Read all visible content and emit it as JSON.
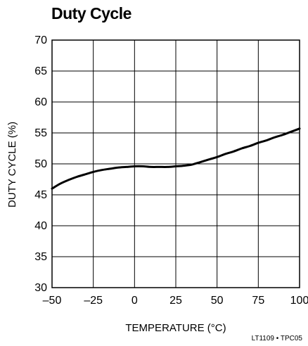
{
  "title": "Duty Cycle",
  "footer_code": "LT1109 • TPC05",
  "chart_data": {
    "type": "line",
    "title": "Duty Cycle",
    "xlabel": "TEMPERATURE (°C)",
    "ylabel": "DUTY CYCLE (%)",
    "xlim": [
      -50,
      100
    ],
    "ylim": [
      30,
      70
    ],
    "xticks": [
      -50,
      -25,
      0,
      25,
      50,
      75,
      100
    ],
    "yticks": [
      30,
      35,
      40,
      45,
      50,
      55,
      60,
      65,
      70
    ],
    "xtick_labels": [
      "–50",
      "–25",
      "0",
      "25",
      "50",
      "75",
      "100"
    ],
    "grid": true,
    "series": [
      {
        "x": [
          -50,
          -45,
          -40,
          -35,
          -30,
          -25,
          -20,
          -15,
          -10,
          -5,
          0,
          5,
          10,
          15,
          20,
          25,
          30,
          35,
          40,
          45,
          50,
          55,
          60,
          65,
          70,
          75,
          80,
          85,
          90,
          95,
          100
        ],
        "y": [
          46.0,
          46.8,
          47.4,
          47.9,
          48.3,
          48.7,
          49.0,
          49.2,
          49.4,
          49.5,
          49.6,
          49.6,
          49.5,
          49.5,
          49.5,
          49.6,
          49.7,
          49.9,
          50.3,
          50.7,
          51.1,
          51.6,
          52.0,
          52.5,
          52.9,
          53.4,
          53.8,
          54.3,
          54.7,
          55.2,
          55.7
        ]
      }
    ]
  },
  "colors": {
    "line": "#000000",
    "grid": "#000000",
    "background": "#ffffff"
  }
}
